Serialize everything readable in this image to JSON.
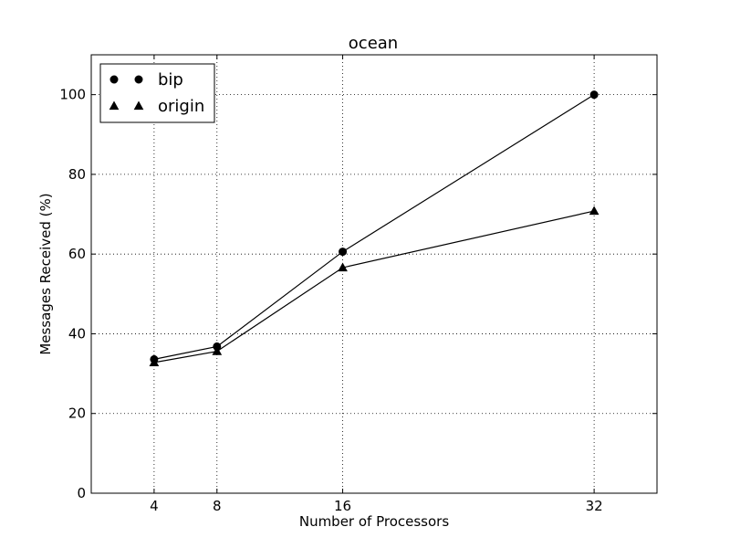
{
  "chart_data": {
    "type": "line",
    "title": "ocean",
    "xlabel": "Number of Processors",
    "ylabel": "Messages Received (%)",
    "x": [
      4,
      8,
      16,
      32
    ],
    "xticks": [
      "4",
      "8",
      "16",
      "32"
    ],
    "xlim": [
      0,
      36
    ],
    "ylim": [
      0,
      110
    ],
    "yticks": [
      "0",
      "20",
      "40",
      "60",
      "80",
      "100"
    ],
    "grid": true,
    "legend_position": "top-left",
    "series": [
      {
        "name": "bip",
        "marker": "circle",
        "color": "#000000",
        "values": [
          33.6,
          36.8,
          60.6,
          100
        ]
      },
      {
        "name": "origin",
        "marker": "triangle",
        "color": "#000000",
        "values": [
          32.8,
          35.6,
          56.6,
          70.8
        ]
      }
    ]
  }
}
